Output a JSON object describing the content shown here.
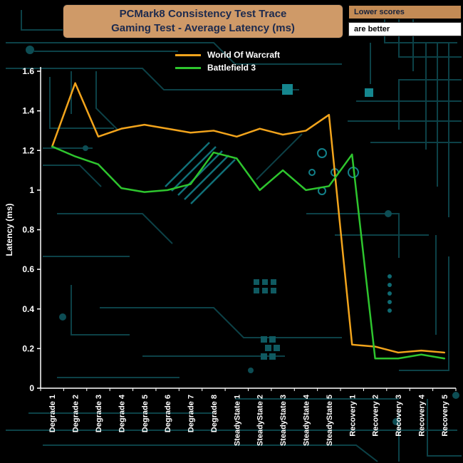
{
  "header": {
    "title_line1": "PCMark8 Consistency Test Trace",
    "title_line2": "Gaming Test -  Average Latency (ms)",
    "badge_top": "Lower scores",
    "badge_bottom": "are better"
  },
  "chart_data": {
    "type": "line",
    "title": "PCMark8 Consistency Test Trace Gaming Test - Average Latency (ms)",
    "xlabel": "",
    "ylabel": "Latency (ms)",
    "ylim": [
      0,
      1.6
    ],
    "ytick_labels": [
      "0",
      "0.2",
      "0.4",
      "0.6",
      "0.8",
      "1",
      "1.2",
      "1.4",
      "1.6"
    ],
    "grid": false,
    "legend_position": "top",
    "categories": [
      "Degrade 1",
      "Degrade 2",
      "Degrade 3",
      "Degrade 4",
      "Degrade 5",
      "Degrade 6",
      "Degrade 7",
      "Degrade 8",
      "SteadyState 1",
      "SteadyState 2",
      "SteadyState 3",
      "SteadyState 4",
      "SteadyState 5",
      "Recovery 1",
      "Recovery 2",
      "Recovery 3",
      "Recovery 4",
      "Recovery 5"
    ],
    "series": [
      {
        "name": "World Of Warcraft",
        "color": "#f2a41c",
        "values": [
          1.22,
          1.54,
          1.27,
          1.31,
          1.33,
          1.31,
          1.29,
          1.3,
          1.27,
          1.31,
          1.28,
          1.3,
          1.38,
          0.22,
          0.21,
          0.18,
          0.19,
          0.18
        ]
      },
      {
        "name": "Battlefield 3",
        "color": "#2ec52e",
        "values": [
          1.22,
          1.17,
          1.13,
          1.01,
          0.99,
          1.0,
          1.03,
          1.19,
          1.16,
          1.0,
          1.1,
          1.0,
          1.02,
          1.18,
          0.15,
          0.15,
          0.17,
          0.15
        ]
      }
    ]
  },
  "colors": {
    "background": "#000000",
    "panel_tan": "#cf9a68",
    "badge_tan": "#c38b55",
    "title_text": "#1c2a4e",
    "axis": "#ffffff",
    "circuit_dim": "#0c4147",
    "circuit_mid": "#0f5a61",
    "circuit_bright": "#15868e"
  }
}
